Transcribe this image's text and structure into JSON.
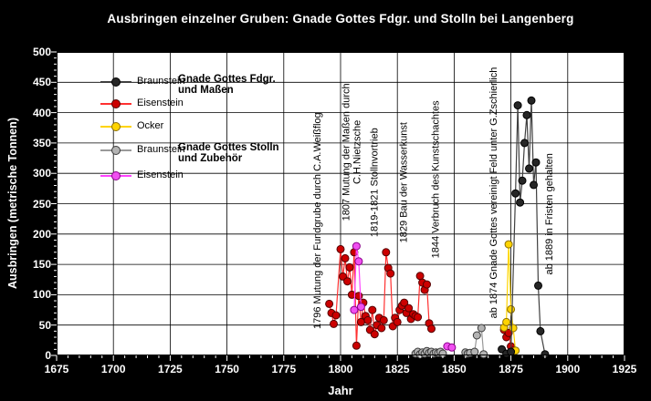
{
  "chart_data": {
    "type": "line",
    "title": "Ausbringen einzelner Gruben: Gnade Gottes Fdgr. und Stolln bei Langenberg",
    "xlabel": "Jahr",
    "ylabel": "Ausbringen (metrische Tonnen)",
    "xlim": [
      1675,
      1925
    ],
    "ylim": [
      0,
      500
    ],
    "x_ticks": [
      1675,
      1700,
      1725,
      1750,
      1775,
      1800,
      1825,
      1850,
      1875,
      1900,
      1925
    ],
    "x_minor_step": 5,
    "y_ticks": [
      0,
      50,
      100,
      150,
      200,
      250,
      300,
      350,
      400,
      450,
      500
    ],
    "y_minor_step": 10,
    "grid": true,
    "legend_position": "top-left-inside",
    "series": [
      {
        "name": "Braunstein (Gnade Gottes Stolln und Zubehör)",
        "fill": "#b3b3b3",
        "stroke": "#3a3a3a",
        "line": "#999999",
        "points": [
          [
            1833,
            3
          ],
          [
            1834,
            6
          ],
          [
            1835,
            2
          ],
          [
            1836,
            5
          ],
          [
            1837,
            3
          ],
          [
            1838,
            7
          ],
          [
            1839,
            4
          ],
          [
            1840,
            6
          ],
          [
            1841,
            3
          ],
          [
            1842,
            5
          ],
          [
            1843,
            4
          ],
          [
            1844,
            6
          ],
          [
            1845,
            3
          ],
          [
            1855,
            5
          ],
          [
            1856,
            3
          ],
          [
            1857,
            4
          ],
          [
            1859,
            6
          ],
          [
            1860,
            33
          ],
          [
            1862,
            45
          ],
          [
            1863,
            2
          ]
        ]
      },
      {
        "name": "Eisenstein (Gnade Gottes Fdgr. und Maßen)",
        "fill": "#cc0000",
        "stroke": "#550000",
        "line": "#ff3030",
        "points": [
          [
            1795,
            85
          ],
          [
            1796,
            70
          ],
          [
            1797,
            52
          ],
          [
            1798,
            66
          ],
          [
            1800,
            175
          ],
          [
            1801,
            130
          ],
          [
            1802,
            160
          ],
          [
            1803,
            122
          ],
          [
            1804,
            145
          ],
          [
            1805,
            100
          ],
          [
            1806,
            170
          ],
          [
            1807,
            16
          ],
          [
            1808,
            98
          ],
          [
            1809,
            55
          ],
          [
            1810,
            87
          ],
          [
            1811,
            65
          ],
          [
            1812,
            58
          ],
          [
            1813,
            42
          ],
          [
            1814,
            75
          ],
          [
            1815,
            35
          ],
          [
            1816,
            50
          ],
          [
            1817,
            62
          ],
          [
            1818,
            45
          ],
          [
            1819,
            58
          ],
          [
            1820,
            170
          ],
          [
            1821,
            144
          ],
          [
            1822,
            135
          ],
          [
            1823,
            48
          ],
          [
            1824,
            62
          ],
          [
            1825,
            55
          ],
          [
            1826,
            75
          ],
          [
            1827,
            82
          ],
          [
            1828,
            87
          ],
          [
            1829,
            70
          ],
          [
            1830,
            78
          ],
          [
            1831,
            60
          ],
          [
            1832,
            68
          ],
          [
            1833,
            65
          ],
          [
            1834,
            63
          ],
          [
            1835,
            131
          ],
          [
            1836,
            120
          ],
          [
            1837,
            108
          ],
          [
            1838,
            117
          ],
          [
            1839,
            53
          ],
          [
            1840,
            44
          ],
          [
            1872,
            42
          ],
          [
            1873,
            30
          ],
          [
            1874,
            37
          ],
          [
            1875,
            15
          ],
          [
            1876,
            8
          ]
        ]
      },
      {
        "name": "Eisenstein (Gnade Gottes Stolln und Zubehör)",
        "fill": "#f050f0",
        "stroke": "#8b008b",
        "line": "#ff44ff",
        "points": [
          [
            1806,
            75
          ],
          [
            1807,
            180
          ],
          [
            1808,
            155
          ],
          [
            1809,
            80
          ],
          [
            1847,
            15
          ],
          [
            1849,
            13
          ]
        ]
      },
      {
        "name": "Ocker (Gnade Gottes Fdgr. und Maßen)",
        "fill": "#ffd400",
        "stroke": "#8a6d00",
        "line": "#ffd400",
        "points": [
          [
            1872,
            46
          ],
          [
            1873,
            55
          ],
          [
            1874,
            183
          ],
          [
            1875,
            76
          ],
          [
            1876,
            45
          ],
          [
            1877,
            8
          ]
        ]
      },
      {
        "name": "Braunstein (Gnade Gottes Fdgr. und Maßen)",
        "fill": "#262626",
        "stroke": "#000000",
        "line": "#404040",
        "points": [
          [
            1871,
            10
          ],
          [
            1873,
            3
          ],
          [
            1875,
            6
          ],
          [
            1877,
            267
          ],
          [
            1878,
            412
          ],
          [
            1879,
            252
          ],
          [
            1880,
            288
          ],
          [
            1881,
            350
          ],
          [
            1882,
            396
          ],
          [
            1883,
            308
          ],
          [
            1884,
            420
          ],
          [
            1885,
            281
          ],
          [
            1886,
            318
          ],
          [
            1887,
            115
          ],
          [
            1888,
            40
          ],
          [
            1890,
            2
          ]
        ]
      }
    ]
  },
  "legend": {
    "items": [
      {
        "label": "Braunstein",
        "fill": "#262626",
        "stroke": "#000000",
        "line": "#404040"
      },
      {
        "label": "Eisenstein",
        "fill": "#cc0000",
        "stroke": "#550000",
        "line": "#ff3030"
      },
      {
        "label": "Ocker",
        "fill": "#ffd400",
        "stroke": "#8a6d00",
        "line": "#ffd400"
      },
      {
        "label": "Braunstein",
        "fill": "#b3b3b3",
        "stroke": "#3a3a3a",
        "line": "#999999"
      },
      {
        "label": "Eisenstein",
        "fill": "#f050f0",
        "stroke": "#8b008b",
        "line": "#ff44ff"
      }
    ],
    "groups": [
      {
        "label": "Gnade Gottes Fdgr.\nund Maßen"
      },
      {
        "label": "Gnade Gottes Stolln\nund Zubehör"
      }
    ]
  },
  "annotations": [
    {
      "lines": [
        "1796 Mutung der Fundgrube durch C.A.Weißflog"
      ],
      "year": 1790,
      "y_mid": 222
    },
    {
      "lines": [
        "1807 Mutung der Maßen durch",
        "C.H.Nietzsche"
      ],
      "year": 1805,
      "y_mid": 335
    },
    {
      "lines": [
        "1819-1821 Stollnvortrieb"
      ],
      "year": 1815,
      "y_mid": 285
    },
    {
      "lines": [
        "1829 Bau der Wasserkunst"
      ],
      "year": 1828,
      "y_mid": 285
    },
    {
      "lines": [
        "1844 Verbruch des Kunstschachtes"
      ],
      "year": 1842,
      "y_mid": 290
    },
    {
      "lines": [
        "ab 1874 Gnade Gottes vereinigt Feld unter G.Zschierlich"
      ],
      "year": 1867.5,
      "y_mid": 268
    },
    {
      "lines": [
        "ab 1889 in Fristen gehalten"
      ],
      "year": 1892,
      "y_mid": 233
    }
  ]
}
